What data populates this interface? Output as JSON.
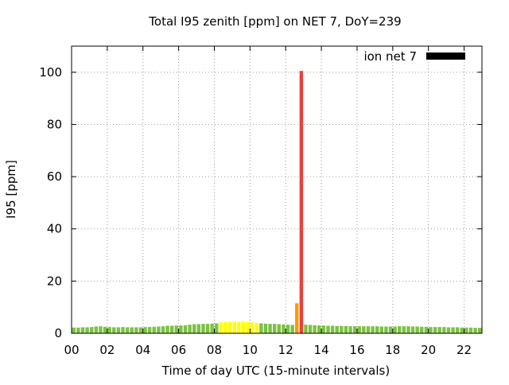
{
  "chart_data": {
    "type": "bar",
    "title": "Total I95 zenith [ppm] on NET 7, DoY=239",
    "xlabel": "Time of day UTC (15-minute intervals)",
    "ylabel": "I95 [ppm]",
    "legend": {
      "label": "ion net 7",
      "placement": "top-right",
      "swatch_color": "#000000"
    },
    "xlim": [
      0,
      23
    ],
    "ylim": [
      0,
      110
    ],
    "grid": true,
    "x_tick_labels": [
      "00",
      "02",
      "04",
      "06",
      "08",
      "10",
      "12",
      "14",
      "16",
      "18",
      "20",
      "22"
    ],
    "x_tick_values": [
      0,
      2,
      4,
      6,
      8,
      10,
      12,
      14,
      16,
      18,
      20,
      22
    ],
    "y_ticks": [
      0,
      20,
      40,
      60,
      80,
      100
    ],
    "interval_hours": 0.25,
    "colors": {
      "green": "#7cc242",
      "yellow": "#ffff00",
      "orange": "#ff9900",
      "red": "#e8413c"
    },
    "series": [
      {
        "x": [
          0,
          0.25,
          0.5,
          0.75,
          1,
          1.25,
          1.5,
          1.75,
          2,
          2.25,
          2.5,
          2.75,
          3,
          3.25,
          3.5,
          3.75,
          4,
          4.25,
          4.5,
          4.75,
          5,
          5.25,
          5.5,
          5.75,
          6,
          6.25,
          6.5,
          6.75,
          7,
          7.25,
          7.5,
          7.75,
          8,
          8.25,
          8.5,
          8.75,
          9,
          9.25,
          9.5,
          9.75,
          10,
          10.25,
          10.5,
          10.75,
          11,
          11.25,
          11.5,
          11.75,
          12,
          12.25,
          12.5,
          12.75,
          13,
          13.25,
          13.5,
          13.75,
          14,
          14.25,
          14.5,
          14.75,
          15,
          15.25,
          15.5,
          15.75,
          16,
          16.25,
          16.5,
          16.75,
          17,
          17.25,
          17.5,
          17.75,
          18,
          18.25,
          18.5,
          18.75,
          19,
          19.25,
          19.5,
          19.75,
          20,
          20.25,
          20.5,
          20.75,
          21,
          21.25,
          21.5,
          21.75,
          22,
          22.25,
          22.5,
          22.75
        ],
        "values": [
          2.2,
          2.2,
          2.3,
          2.3,
          2.4,
          2.6,
          2.7,
          2.5,
          2.4,
          2.3,
          2.3,
          2.4,
          2.3,
          2.3,
          2.3,
          2.3,
          2.4,
          2.4,
          2.5,
          2.6,
          2.7,
          2.9,
          2.9,
          3.0,
          3.0,
          3.1,
          3.3,
          3.5,
          3.5,
          3.6,
          3.6,
          3.7,
          3.8,
          4.2,
          4.3,
          4.3,
          4.4,
          4.4,
          4.4,
          4.4,
          4.2,
          4.0,
          3.8,
          3.7,
          3.6,
          3.6,
          3.5,
          3.4,
          3.3,
          3.2,
          11.5,
          100.5,
          3.3,
          3.2,
          3.1,
          3.0,
          3.0,
          2.9,
          2.9,
          2.8,
          2.8,
          2.8,
          2.7,
          2.7,
          2.7,
          2.7,
          2.7,
          2.7,
          2.7,
          2.6,
          2.6,
          2.6,
          2.6,
          2.7,
          2.7,
          2.7,
          2.6,
          2.6,
          2.5,
          2.5,
          2.4,
          2.4,
          2.4,
          2.4,
          2.3,
          2.3,
          2.3,
          2.2,
          2.2,
          2.2,
          2.1,
          2.1
        ],
        "colors": [
          "green",
          "green",
          "green",
          "green",
          "green",
          "green",
          "green",
          "green",
          "green",
          "green",
          "green",
          "green",
          "green",
          "green",
          "green",
          "green",
          "green",
          "green",
          "green",
          "green",
          "green",
          "green",
          "green",
          "green",
          "green",
          "green",
          "green",
          "green",
          "green",
          "green",
          "green",
          "green",
          "green",
          "yellow",
          "yellow",
          "yellow",
          "yellow",
          "yellow",
          "yellow",
          "yellow",
          "yellow",
          "yellow",
          "green",
          "green",
          "green",
          "green",
          "green",
          "green",
          "green",
          "green",
          "orange",
          "red",
          "green",
          "green",
          "green",
          "green",
          "green",
          "green",
          "green",
          "green",
          "green",
          "green",
          "green",
          "green",
          "green",
          "green",
          "green",
          "green",
          "green",
          "green",
          "green",
          "green",
          "green",
          "green",
          "green",
          "green",
          "green",
          "green",
          "green",
          "green",
          "green",
          "green",
          "green",
          "green",
          "green",
          "green",
          "green",
          "green",
          "green",
          "green",
          "green",
          "green"
        ]
      }
    ]
  }
}
